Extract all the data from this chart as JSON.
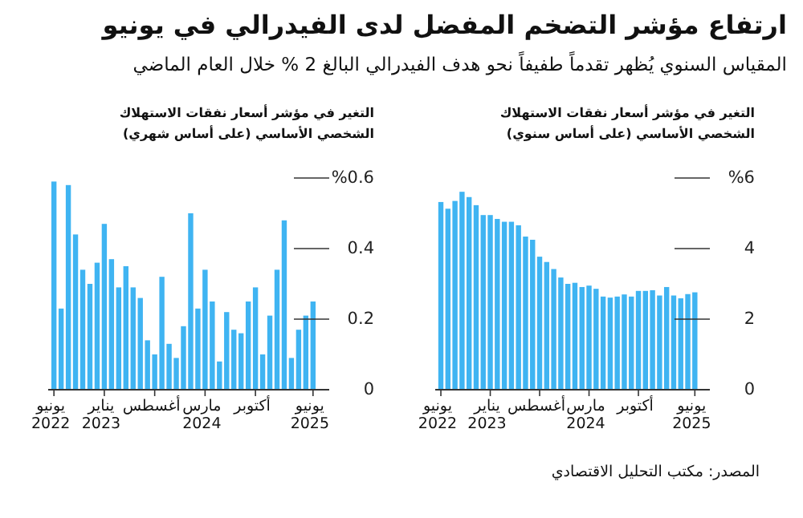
{
  "chart_data": [
    {
      "type": "bar",
      "title": "ارتفاع مؤشر التضخم المفضل لدى الفيدرالي في يونيو",
      "subtitle": "المقياس السنوي يُظهر تقدماً طفيفاً نحو هدف الفيدرالي البالغ 2 % خلال العام الماضي",
      "ylabel": "التغير في مؤشر أسعار نفقات الاستهلاك الشخصي الأساسي (على أساس سنوي)",
      "annotations": [
        "المصدر: مكتب التحليل الاقتصادي"
      ],
      "categories": [
        "يونيو 2022",
        null,
        null,
        null,
        null,
        null,
        null,
        "يناير 2023",
        null,
        null,
        null,
        null,
        null,
        null,
        "أغسطس",
        null,
        null,
        null,
        null,
        null,
        null,
        "مارس 2024",
        null,
        null,
        null,
        null,
        null,
        null,
        "أكتوبر",
        null,
        null,
        null,
        null,
        null,
        null,
        null,
        "يونيو 2025"
      ],
      "values": [
        5.32,
        5.13,
        5.35,
        5.61,
        5.46,
        5.23,
        4.95,
        4.95,
        4.84,
        4.76,
        4.76,
        4.66,
        4.34,
        4.25,
        3.77,
        3.62,
        3.42,
        3.18,
        3.0,
        3.03,
        2.91,
        2.95,
        2.86,
        2.64,
        2.61,
        2.64,
        2.7,
        2.64,
        2.8,
        2.8,
        2.82,
        2.67,
        2.91,
        2.67,
        2.59,
        2.71,
        2.76
      ],
      "color": "#3fb4f2",
      "ylim": [
        0,
        6
      ],
      "yticks": [
        0,
        2,
        4,
        {
          "value": 6,
          "label": "%6"
        }
      ]
    },
    {
      "type": "bar",
      "ylabel": "التغير في مؤشر أسعار نفقات الاستهلاك الشخصي الأساسي (على أساس شهري)",
      "categories": [
        "يونيو 2022",
        null,
        null,
        null,
        null,
        null,
        null,
        "يناير 2023",
        null,
        null,
        null,
        null,
        null,
        null,
        "أغسطس",
        null,
        null,
        null,
        null,
        null,
        null,
        "مارس 2024",
        null,
        null,
        null,
        null,
        null,
        null,
        "أكتوبر",
        null,
        null,
        null,
        null,
        null,
        null,
        null,
        "يونيو 2025"
      ],
      "values": [
        0.59,
        0.23,
        0.58,
        0.44,
        0.34,
        0.3,
        0.36,
        0.47,
        0.37,
        0.29,
        0.35,
        0.29,
        0.26,
        0.14,
        0.1,
        0.32,
        0.13,
        0.09,
        0.18,
        0.5,
        0.23,
        0.34,
        0.25,
        0.08,
        0.22,
        0.17,
        0.16,
        0.25,
        0.29,
        0.1,
        0.21,
        0.34,
        0.48,
        0.09,
        0.17,
        0.21,
        0.25
      ],
      "color": "#3fb4f2",
      "ylim": [
        0,
        0.6
      ],
      "yticks": [
        0,
        0.2,
        0.4,
        {
          "value": 0.6,
          "label": "%0.6"
        }
      ]
    }
  ]
}
